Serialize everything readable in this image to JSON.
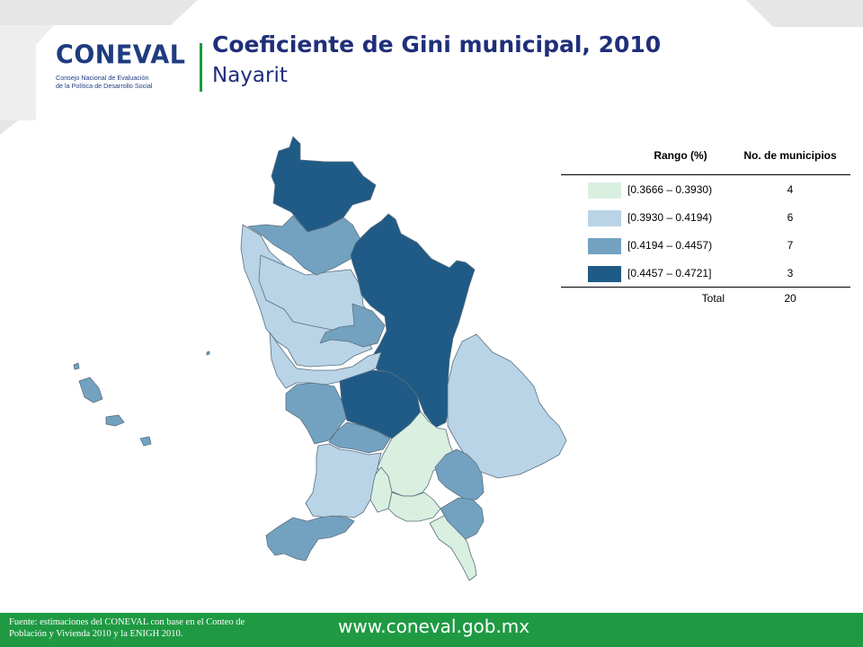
{
  "header": {
    "logo_word": "CONEVAL",
    "logo_subtitle_line1": "Consejo Nacional de Evaluación",
    "logo_subtitle_line2": "de la Política de Desarrollo Social",
    "title": "Coeficiente de Gini municipal, 2010",
    "subtitle": "Nayarit"
  },
  "colors": {
    "class1": "#d9efe0",
    "class2": "#b9d4e6",
    "class3": "#73a2c0",
    "class4": "#1f5b86",
    "footer_green": "#1f9a43",
    "title_blue": "#1f2f7a"
  },
  "legend": {
    "col_range": "Rango (%)",
    "col_count": "No. de municipios",
    "rows": [
      {
        "range": "[0.3666 – 0.3930)",
        "count": "4",
        "color_key": "class1"
      },
      {
        "range": "[0.3930 – 0.4194)",
        "count": "6",
        "color_key": "class2"
      },
      {
        "range": "[0.4194 – 0.4457)",
        "count": "7",
        "color_key": "class3"
      },
      {
        "range": "[0.4457 – 0.4721]",
        "count": "3",
        "color_key": "class4"
      }
    ],
    "total_label": "Total",
    "total_count": "20"
  },
  "footer": {
    "source_line1": "Fuente: estimaciones del CONEVAL con base en el Conteo de",
    "source_line2": "Población y Vivienda 2010 y la ENIGH 2010.",
    "url": "www.coneval.gob.mx"
  }
}
